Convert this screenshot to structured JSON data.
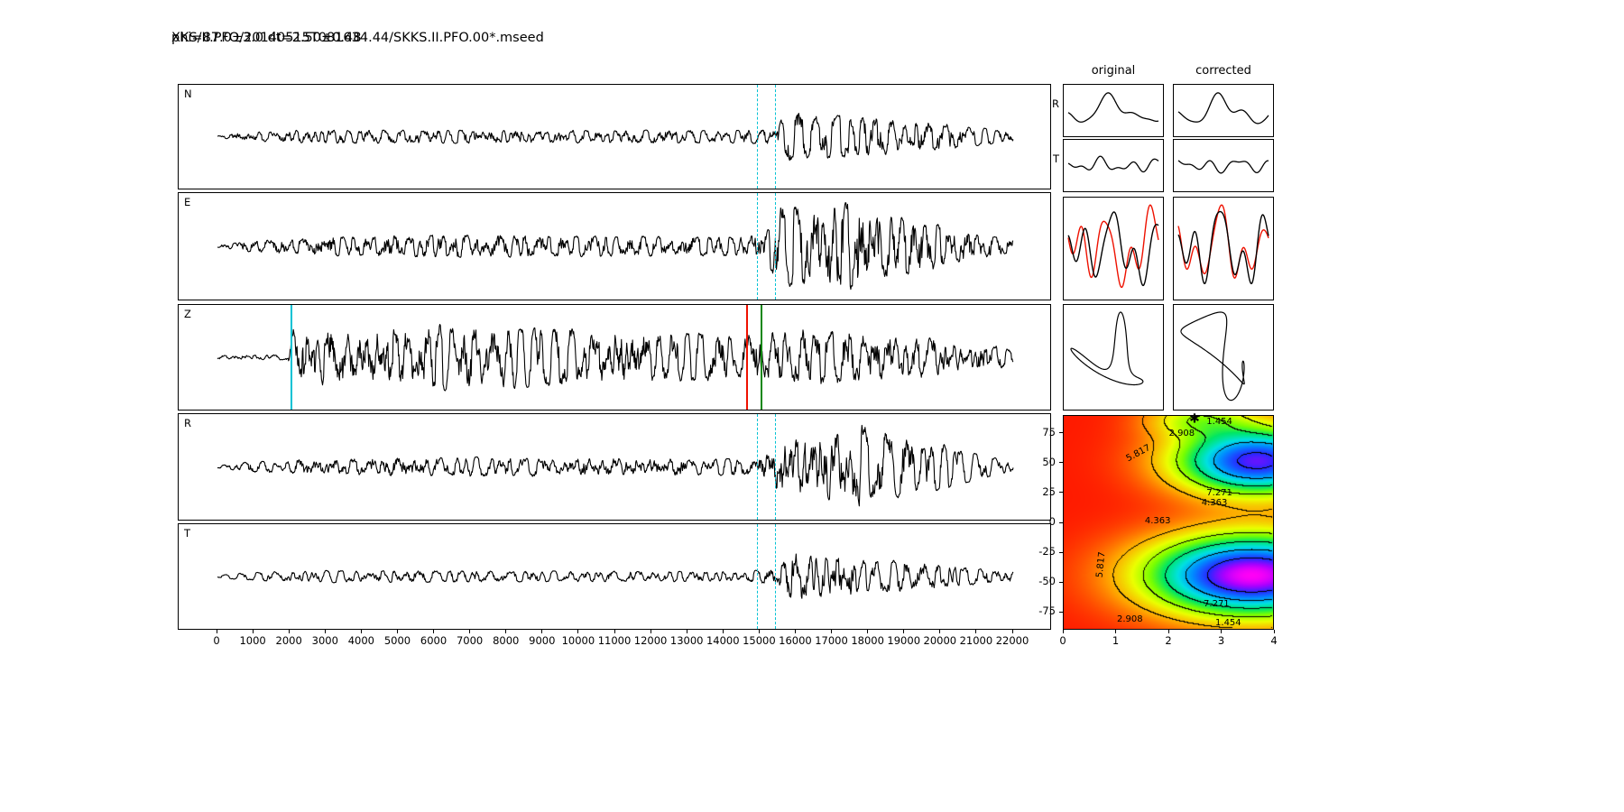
{
  "title": {
    "line1": "XKS/II.PFO/20140515T081634.44/SKKS.II.PFO.00*.mseed",
    "line2": "phi=87.0±3.0 dt=2.50±0.48"
  },
  "right": {
    "col_headers": [
      "original",
      "corrected"
    ],
    "row_labels": [
      "R",
      "T"
    ]
  },
  "icons": {
    "best_fit_star": "✱"
  },
  "colors": {
    "trace": "#000000",
    "window_marker": "#00c2d4",
    "pick_red": "#ee1100",
    "pick_green": "#118811",
    "compare_red": "#ee1100",
    "surface_colormap": [
      [
        0.0,
        255,
        0,
        246
      ],
      [
        0.07,
        170,
        0,
        255
      ],
      [
        0.16,
        40,
        40,
        255
      ],
      [
        0.28,
        0,
        140,
        255
      ],
      [
        0.4,
        0,
        225,
        225
      ],
      [
        0.52,
        0,
        230,
        100
      ],
      [
        0.62,
        120,
        255,
        0
      ],
      [
        0.74,
        235,
        255,
        0
      ],
      [
        0.86,
        255,
        160,
        0
      ],
      [
        1.0,
        255,
        25,
        0
      ]
    ]
  },
  "chart_data": {
    "type": "line",
    "description": "Shear-wave splitting measurement figure: N/E/Z/R/T seismograms with analysis-window markers, original vs corrected R/T waveforms, particle-motion hodograms, and a phi-dt error surface with contours.",
    "x_axis": {
      "range": [
        0,
        22000
      ],
      "ticks": [
        0,
        1000,
        2000,
        3000,
        4000,
        5000,
        6000,
        7000,
        8000,
        9000,
        10000,
        11000,
        12000,
        13000,
        14000,
        15000,
        16000,
        17000,
        18000,
        19000,
        20000,
        21000,
        22000
      ]
    },
    "waveform_panels": [
      {
        "label": "N",
        "seed": 11,
        "envelope": [
          [
            0,
            0.02
          ],
          [
            600,
            0.08
          ],
          [
            2500,
            0.14
          ],
          [
            8000,
            0.13
          ],
          [
            14500,
            0.13
          ],
          [
            15400,
            0.15
          ],
          [
            15700,
            0.5
          ],
          [
            16500,
            0.45
          ],
          [
            18000,
            0.38
          ],
          [
            19500,
            0.3
          ],
          [
            21000,
            0.18
          ],
          [
            22000,
            0.1
          ]
        ],
        "markers": [
          {
            "name": "window-start",
            "x": 14950,
            "color": "#00c2d4",
            "dash": true
          },
          {
            "name": "window-end",
            "x": 15450,
            "color": "#00c2d4",
            "dash": true
          }
        ]
      },
      {
        "label": "E",
        "seed": 23,
        "envelope": [
          [
            0,
            0.02
          ],
          [
            800,
            0.1
          ],
          [
            3000,
            0.18
          ],
          [
            6000,
            0.22
          ],
          [
            10000,
            0.2
          ],
          [
            14500,
            0.18
          ],
          [
            15100,
            0.25
          ],
          [
            15600,
            0.8
          ],
          [
            16500,
            0.7
          ],
          [
            17500,
            0.85
          ],
          [
            18500,
            0.6
          ],
          [
            19500,
            0.5
          ],
          [
            21000,
            0.25
          ],
          [
            22000,
            0.12
          ]
        ],
        "markers": [
          {
            "name": "window-start",
            "x": 14950,
            "color": "#00c2d4",
            "dash": true
          },
          {
            "name": "window-end",
            "x": 15450,
            "color": "#00c2d4",
            "dash": true
          }
        ]
      },
      {
        "label": "Z",
        "seed": 37,
        "envelope": [
          [
            0,
            0.04
          ],
          [
            1950,
            0.06
          ],
          [
            2100,
            0.6
          ],
          [
            3500,
            0.55
          ],
          [
            6000,
            0.65
          ],
          [
            9000,
            0.6
          ],
          [
            12000,
            0.5
          ],
          [
            14500,
            0.45
          ],
          [
            15500,
            0.55
          ],
          [
            17000,
            0.6
          ],
          [
            18500,
            0.5
          ],
          [
            20000,
            0.4
          ],
          [
            21500,
            0.25
          ],
          [
            22000,
            0.15
          ]
        ],
        "markers": [
          {
            "name": "pick-early",
            "x": 2050,
            "color": "#00c2d4",
            "dash": false
          },
          {
            "name": "pick-red",
            "x": 14650,
            "color": "#ee1100",
            "dash": false
          },
          {
            "name": "pick-green",
            "x": 15050,
            "color": "#118811",
            "dash": false
          }
        ]
      },
      {
        "label": "R",
        "seed": 53,
        "envelope": [
          [
            0,
            0.02
          ],
          [
            800,
            0.1
          ],
          [
            3000,
            0.16
          ],
          [
            6000,
            0.2
          ],
          [
            10000,
            0.18
          ],
          [
            14500,
            0.16
          ],
          [
            15300,
            0.3
          ],
          [
            15800,
            0.8
          ],
          [
            17000,
            0.7
          ],
          [
            17800,
            0.85
          ],
          [
            19000,
            0.55
          ],
          [
            20000,
            0.45
          ],
          [
            21000,
            0.25
          ],
          [
            22000,
            0.12
          ]
        ],
        "markers": [
          {
            "name": "window-start",
            "x": 14950,
            "color": "#00c2d4",
            "dash": true
          },
          {
            "name": "window-end",
            "x": 15450,
            "color": "#00c2d4",
            "dash": true
          }
        ]
      },
      {
        "label": "T",
        "seed": 71,
        "envelope": [
          [
            0,
            0.02
          ],
          [
            800,
            0.08
          ],
          [
            3000,
            0.12
          ],
          [
            8000,
            0.11
          ],
          [
            14500,
            0.1
          ],
          [
            15400,
            0.15
          ],
          [
            15900,
            0.55
          ],
          [
            16800,
            0.45
          ],
          [
            18000,
            0.35
          ],
          [
            19500,
            0.28
          ],
          [
            21000,
            0.16
          ],
          [
            22000,
            0.1
          ]
        ],
        "markers": [
          {
            "name": "window-start",
            "x": 14950,
            "color": "#00c2d4",
            "dash": true
          },
          {
            "name": "window-end",
            "x": 15450,
            "color": "#00c2d4",
            "dash": true
          }
        ]
      }
    ],
    "small_panels": {
      "R": {
        "original": {
          "comps": [
            [
              1.3,
              1.0,
              4.0
            ],
            [
              2.6,
              0.5,
              1.0
            ],
            [
              4.2,
              0.18,
              2.2
            ]
          ],
          "scale": 0.8
        },
        "corrected": {
          "comps": [
            [
              1.4,
              1.0,
              3.6
            ],
            [
              2.8,
              0.5,
              0.6
            ],
            [
              4.0,
              0.2,
              2.9
            ]
          ],
          "scale": 0.8
        }
      },
      "T": {
        "original": {
          "comps": [
            [
              3.1,
              0.6,
              0.8
            ],
            [
              5.2,
              0.4,
              2.6
            ],
            [
              1.6,
              0.35,
              4.4
            ]
          ],
          "scale": 0.42
        },
        "corrected": {
          "comps": [
            [
              3.0,
              0.6,
              1.5
            ],
            [
              4.8,
              0.4,
              3.3
            ],
            [
              1.7,
              0.3,
              0.6
            ]
          ],
          "scale": 0.34
        }
      },
      "compare": {
        "original": {
          "black": [
            [
              2.2,
              0.8,
              0.6
            ],
            [
              3.8,
              0.7,
              2.9
            ],
            [
              5.5,
              0.35,
              1.4
            ],
            [
              1.2,
              0.4,
              4.7
            ]
          ],
          "red": [
            [
              2.2,
              0.9,
              1.9
            ],
            [
              3.8,
              0.8,
              4.2
            ],
            [
              5.5,
              0.4,
              2.6
            ],
            [
              1.2,
              0.45,
              0.3
            ]
          ]
        },
        "corrected": {
          "black": [
            [
              2.3,
              0.8,
              0.8
            ],
            [
              3.9,
              0.7,
              3.1
            ],
            [
              5.6,
              0.35,
              1.2
            ],
            [
              1.3,
              0.4,
              4.5
            ]
          ],
          "red": [
            [
              2.3,
              0.95,
              1.1
            ],
            [
              3.9,
              0.85,
              2.7
            ],
            [
              5.6,
              0.3,
              1.6
            ],
            [
              1.3,
              0.5,
              4.1
            ]
          ]
        }
      },
      "particle": {
        "original": {
          "x": [
            [
              1,
              1.0,
              0.3
            ],
            [
              2,
              0.55,
              1.2
            ],
            [
              3,
              0.2,
              2.1
            ]
          ],
          "y": [
            [
              1,
              0.7,
              1.9
            ],
            [
              2,
              0.5,
              0.4
            ],
            [
              3,
              0.3,
              3.3
            ]
          ]
        },
        "corrected": {
          "x": [
            [
              1,
              0.9,
              0.2
            ],
            [
              2,
              0.45,
              1.0
            ],
            [
              3,
              0.3,
              2.6
            ]
          ],
          "y": [
            [
              1,
              0.85,
              0.35
            ],
            [
              2,
              0.5,
              2.8
            ],
            [
              3,
              0.3,
              0.9
            ]
          ]
        }
      }
    },
    "error_surface": {
      "type": "heatmap",
      "x_range": [
        0,
        4
      ],
      "y_range": [
        -90,
        90
      ],
      "xlabel_ticks": [
        0,
        1,
        2,
        3,
        4
      ],
      "ylabel_ticks": [
        75,
        50,
        25,
        0,
        -25,
        -50,
        -75
      ],
      "contour_levels": [
        1.454,
        2.908,
        4.363,
        5.817,
        7.271
      ],
      "vmax": 8.725,
      "best_fit": {
        "phi": 87.0,
        "phi_err": 3.0,
        "dt": 2.5,
        "dt_err": 0.48
      },
      "wells": [
        {
          "amp": 1.0,
          "camp": 1.0,
          "dt": 3.6,
          "sdt": 1.4,
          "phi": -45,
          "sphi": 24
        },
        {
          "amp": 0.88,
          "camp": 0.88,
          "dt": 3.7,
          "sdt": 1.1,
          "phi": 52,
          "sphi": 20
        },
        {
          "amp": 0.26,
          "camp": 0.42,
          "dt": 2.55,
          "sdt": 0.7,
          "phi": 88,
          "sphi": 11
        }
      ],
      "contour_labels": [
        {
          "text": "1.454",
          "fx": 0.744,
          "fy": 0.029,
          "rot": 0
        },
        {
          "text": "2.908",
          "fx": 0.564,
          "fy": 0.084,
          "rot": 0
        },
        {
          "text": "5.817",
          "fx": 0.359,
          "fy": 0.176,
          "rot": -28
        },
        {
          "text": "7.271",
          "fx": 0.744,
          "fy": 0.366,
          "rot": 0
        },
        {
          "text": "4.363",
          "fx": 0.72,
          "fy": 0.412,
          "rot": 0
        },
        {
          "text": "4.363",
          "fx": 0.449,
          "fy": 0.496,
          "rot": 0
        },
        {
          "text": "5.817",
          "fx": 0.18,
          "fy": 0.7,
          "rot": -84
        },
        {
          "text": "7.271",
          "fx": 0.73,
          "fy": 0.887,
          "rot": 0
        },
        {
          "text": "2.908",
          "fx": 0.316,
          "fy": 0.958,
          "rot": 0
        },
        {
          "text": "1.454",
          "fx": 0.786,
          "fy": 0.975,
          "rot": 0
        }
      ]
    }
  }
}
